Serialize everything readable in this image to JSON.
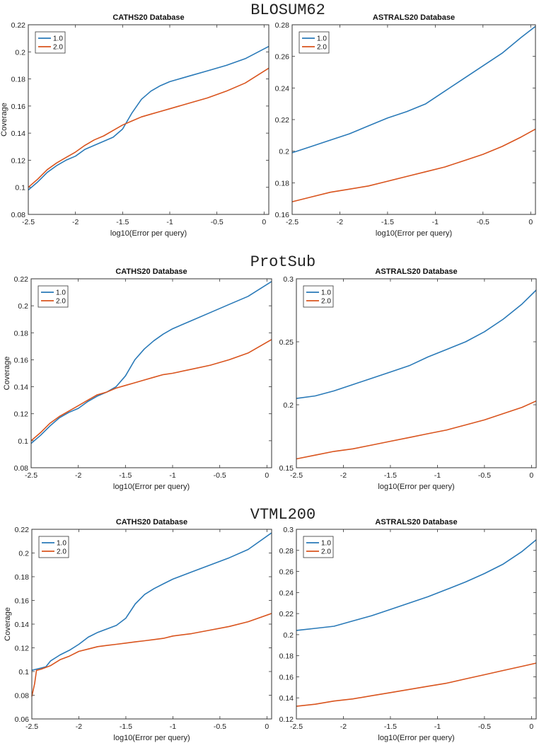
{
  "groups": [
    {
      "title": "BLOSUM62"
    },
    {
      "title": "ProtSub"
    },
    {
      "title": "VTML200"
    }
  ],
  "colors": {
    "series_1": "#2a7ab8",
    "series_2": "#d9541e"
  },
  "chart_data": [
    {
      "type": "line",
      "group": "BLOSUM62",
      "title": "CATHS20 Database",
      "xlabel": "log10(Error per query)",
      "ylabel": "Coverage",
      "xlim": [
        -2.5,
        0.05
      ],
      "ylim": [
        0.08,
        0.22
      ],
      "xticks": [
        -2.5,
        -2,
        -1.5,
        -1,
        -0.5,
        0
      ],
      "xtick_labels": [
        "-2.5",
        "-2",
        "-1.5",
        "-1",
        "-0.5",
        "0"
      ],
      "yticks": [
        0.08,
        0.1,
        0.12,
        0.14,
        0.16,
        0.18,
        0.2,
        0.22
      ],
      "ytick_labels": [
        "0.08",
        "0.1",
        "0.12",
        "0.14",
        "0.16",
        "0.18",
        "0.2",
        "0.22"
      ],
      "legend": [
        "1.0",
        "2.0"
      ],
      "legend_position": "top-left",
      "series": [
        {
          "name": "1.0",
          "x": [
            -2.5,
            -2.4,
            -2.3,
            -2.2,
            -2.1,
            -2.0,
            -1.9,
            -1.8,
            -1.7,
            -1.6,
            -1.5,
            -1.4,
            -1.3,
            -1.2,
            -1.1,
            -1.0,
            -0.8,
            -0.6,
            -0.4,
            -0.2,
            0.05
          ],
          "y": [
            0.098,
            0.104,
            0.111,
            0.116,
            0.12,
            0.123,
            0.128,
            0.131,
            0.134,
            0.137,
            0.143,
            0.155,
            0.165,
            0.171,
            0.175,
            0.178,
            0.182,
            0.186,
            0.19,
            0.195,
            0.204
          ]
        },
        {
          "name": "2.0",
          "x": [
            -2.5,
            -2.4,
            -2.3,
            -2.2,
            -2.1,
            -2.0,
            -1.9,
            -1.8,
            -1.7,
            -1.6,
            -1.5,
            -1.4,
            -1.3,
            -1.2,
            -1.1,
            -1.0,
            -0.8,
            -0.6,
            -0.4,
            -0.2,
            0.05
          ],
          "y": [
            0.1,
            0.106,
            0.113,
            0.118,
            0.122,
            0.126,
            0.131,
            0.135,
            0.138,
            0.142,
            0.146,
            0.149,
            0.152,
            0.154,
            0.156,
            0.158,
            0.162,
            0.166,
            0.171,
            0.177,
            0.188
          ]
        }
      ]
    },
    {
      "type": "line",
      "group": "BLOSUM62",
      "title": "ASTRALS20 Database",
      "xlabel": "log10(Error per query)",
      "ylabel": "",
      "xlim": [
        -2.5,
        0.05
      ],
      "ylim": [
        0.16,
        0.28
      ],
      "xticks": [
        -2.5,
        -2,
        -1.5,
        -1,
        -0.5,
        0
      ],
      "xtick_labels": [
        "-2.5",
        "-2",
        "-1.5",
        "-1",
        "-0.5",
        "0"
      ],
      "yticks": [
        0.16,
        0.18,
        0.2,
        0.22,
        0.24,
        0.26,
        0.28
      ],
      "ytick_labels": [
        "0.16",
        "0.18",
        "0.2",
        "0.22",
        "0.24",
        "0.26",
        "0.28"
      ],
      "legend": [
        "1.0",
        "2.0"
      ],
      "legend_position": "top-left",
      "series": [
        {
          "name": "1.0",
          "x": [
            -2.5,
            -2.3,
            -2.1,
            -1.9,
            -1.7,
            -1.5,
            -1.3,
            -1.1,
            -0.9,
            -0.7,
            -0.5,
            -0.3,
            -0.1,
            0.05
          ],
          "y": [
            0.199,
            0.203,
            0.207,
            0.211,
            0.216,
            0.221,
            0.225,
            0.23,
            0.238,
            0.246,
            0.254,
            0.262,
            0.272,
            0.279
          ]
        },
        {
          "name": "2.0",
          "x": [
            -2.5,
            -2.3,
            -2.1,
            -1.9,
            -1.7,
            -1.5,
            -1.3,
            -1.1,
            -0.9,
            -0.7,
            -0.5,
            -0.3,
            -0.1,
            0.05
          ],
          "y": [
            0.168,
            0.171,
            0.174,
            0.176,
            0.178,
            0.181,
            0.184,
            0.187,
            0.19,
            0.194,
            0.198,
            0.203,
            0.209,
            0.214
          ]
        }
      ]
    },
    {
      "type": "line",
      "group": "ProtSub",
      "title": "CATHS20 Database",
      "xlabel": "log10(Error per query)",
      "ylabel": "Coverage",
      "xlim": [
        -2.5,
        0.05
      ],
      "ylim": [
        0.08,
        0.22
      ],
      "xticks": [
        -2.5,
        -2,
        -1.5,
        -1,
        -0.5,
        0
      ],
      "xtick_labels": [
        "-2.5",
        "-2",
        "-1.5",
        "-1",
        "-0.5",
        "0"
      ],
      "yticks": [
        0.08,
        0.1,
        0.12,
        0.14,
        0.16,
        0.18,
        0.2,
        0.22
      ],
      "ytick_labels": [
        "0.08",
        "0.1",
        "0.12",
        "0.14",
        "0.16",
        "0.18",
        "0.2",
        "0.22"
      ],
      "legend": [
        "1.0",
        "2.0"
      ],
      "legend_position": "top-left",
      "series": [
        {
          "name": "1.0",
          "x": [
            -2.5,
            -2.4,
            -2.3,
            -2.2,
            -2.1,
            -2.0,
            -1.9,
            -1.8,
            -1.7,
            -1.6,
            -1.5,
            -1.4,
            -1.3,
            -1.2,
            -1.1,
            -1.0,
            -0.8,
            -0.6,
            -0.4,
            -0.2,
            0.05
          ],
          "y": [
            0.098,
            0.104,
            0.111,
            0.117,
            0.121,
            0.124,
            0.129,
            0.133,
            0.136,
            0.14,
            0.148,
            0.16,
            0.168,
            0.174,
            0.179,
            0.183,
            0.189,
            0.195,
            0.201,
            0.207,
            0.218
          ]
        },
        {
          "name": "2.0",
          "x": [
            -2.5,
            -2.4,
            -2.3,
            -2.2,
            -2.1,
            -2.0,
            -1.9,
            -1.8,
            -1.7,
            -1.6,
            -1.5,
            -1.4,
            -1.3,
            -1.2,
            -1.1,
            -1.0,
            -0.8,
            -0.6,
            -0.4,
            -0.2,
            0.05
          ],
          "y": [
            0.1,
            0.106,
            0.113,
            0.118,
            0.122,
            0.126,
            0.13,
            0.134,
            0.136,
            0.139,
            0.141,
            0.143,
            0.145,
            0.147,
            0.149,
            0.15,
            0.153,
            0.156,
            0.16,
            0.165,
            0.175
          ]
        }
      ]
    },
    {
      "type": "line",
      "group": "ProtSub",
      "title": "ASTRALS20 Database",
      "xlabel": "log10(Error per query)",
      "ylabel": "",
      "xlim": [
        -2.5,
        0.05
      ],
      "ylim": [
        0.15,
        0.3
      ],
      "xticks": [
        -2.5,
        -2,
        -1.5,
        -1,
        -0.5,
        0
      ],
      "xtick_labels": [
        "-2.5",
        "-2",
        "-1.5",
        "-1",
        "-0.5",
        "0"
      ],
      "yticks": [
        0.15,
        0.2,
        0.25,
        0.3
      ],
      "ytick_labels": [
        "0.15",
        "0.2",
        "0.25",
        "0.3"
      ],
      "legend": [
        "1.0",
        "2.0"
      ],
      "legend_position": "top-left",
      "series": [
        {
          "name": "1.0",
          "x": [
            -2.5,
            -2.3,
            -2.1,
            -1.9,
            -1.7,
            -1.5,
            -1.3,
            -1.1,
            -0.9,
            -0.7,
            -0.5,
            -0.3,
            -0.1,
            0.05
          ],
          "y": [
            0.205,
            0.207,
            0.211,
            0.216,
            0.221,
            0.226,
            0.231,
            0.238,
            0.244,
            0.25,
            0.258,
            0.268,
            0.28,
            0.291
          ]
        },
        {
          "name": "2.0",
          "x": [
            -2.5,
            -2.3,
            -2.1,
            -1.9,
            -1.7,
            -1.5,
            -1.3,
            -1.1,
            -0.9,
            -0.7,
            -0.5,
            -0.3,
            -0.1,
            0.05
          ],
          "y": [
            0.157,
            0.16,
            0.163,
            0.165,
            0.168,
            0.171,
            0.174,
            0.177,
            0.18,
            0.184,
            0.188,
            0.193,
            0.198,
            0.203
          ]
        }
      ]
    },
    {
      "type": "line",
      "group": "VTML200",
      "title": "CATHS20 Database",
      "xlabel": "log10(Error per query)",
      "ylabel": "Coverage",
      "xlim": [
        -2.5,
        0.05
      ],
      "ylim": [
        0.06,
        0.22
      ],
      "xticks": [
        -2.5,
        -2,
        -1.5,
        -1,
        -0.5,
        0
      ],
      "xtick_labels": [
        "-2.5",
        "-2",
        "-1.5",
        "-1",
        "-0.5",
        "0"
      ],
      "yticks": [
        0.06,
        0.08,
        0.1,
        0.12,
        0.14,
        0.16,
        0.18,
        0.2,
        0.22
      ],
      "ytick_labels": [
        "0.06",
        "0.08",
        "0.1",
        "0.12",
        "0.14",
        "0.16",
        "0.18",
        "0.2",
        "0.22"
      ],
      "legend": [
        "1.0",
        "2.0"
      ],
      "legend_position": "top-left",
      "series": [
        {
          "name": "1.0",
          "x": [
            -2.5,
            -2.45,
            -2.4,
            -2.35,
            -2.3,
            -2.2,
            -2.1,
            -2.0,
            -1.9,
            -1.8,
            -1.7,
            -1.6,
            -1.5,
            -1.4,
            -1.3,
            -1.2,
            -1.1,
            -1.0,
            -0.8,
            -0.6,
            -0.4,
            -0.2,
            0.05
          ],
          "y": [
            0.101,
            0.102,
            0.103,
            0.104,
            0.109,
            0.114,
            0.118,
            0.123,
            0.129,
            0.133,
            0.136,
            0.139,
            0.145,
            0.157,
            0.165,
            0.17,
            0.174,
            0.178,
            0.184,
            0.19,
            0.196,
            0.203,
            0.217
          ]
        },
        {
          "name": "2.0",
          "x": [
            -2.5,
            -2.47,
            -2.45,
            -2.4,
            -2.3,
            -2.2,
            -2.1,
            -2.0,
            -1.9,
            -1.8,
            -1.7,
            -1.6,
            -1.5,
            -1.4,
            -1.3,
            -1.2,
            -1.1,
            -1.0,
            -0.8,
            -0.6,
            -0.4,
            -0.2,
            0.05
          ],
          "y": [
            0.079,
            0.09,
            0.101,
            0.102,
            0.105,
            0.11,
            0.113,
            0.117,
            0.119,
            0.121,
            0.122,
            0.123,
            0.124,
            0.125,
            0.126,
            0.127,
            0.128,
            0.13,
            0.132,
            0.135,
            0.138,
            0.142,
            0.149
          ]
        }
      ]
    },
    {
      "type": "line",
      "group": "VTML200",
      "title": "ASTRALS20 Database",
      "xlabel": "log10(Error per query)",
      "ylabel": "",
      "xlim": [
        -2.5,
        0.05
      ],
      "ylim": [
        0.12,
        0.3
      ],
      "xticks": [
        -2.5,
        -2,
        -1.5,
        -1,
        -0.5,
        0
      ],
      "xtick_labels": [
        "-2.5",
        "-2",
        "-1.5",
        "-1",
        "-0.5",
        "0"
      ],
      "yticks": [
        0.12,
        0.14,
        0.16,
        0.18,
        0.2,
        0.22,
        0.24,
        0.26,
        0.28,
        0.3
      ],
      "ytick_labels": [
        "0.12",
        "0.14",
        "0.16",
        "0.18",
        "0.2",
        "0.22",
        "0.24",
        "0.26",
        "0.28",
        "0.3"
      ],
      "legend": [
        "1.0",
        "2.0"
      ],
      "legend_position": "top-left",
      "series": [
        {
          "name": "1.0",
          "x": [
            -2.5,
            -2.3,
            -2.1,
            -1.9,
            -1.7,
            -1.5,
            -1.3,
            -1.1,
            -0.9,
            -0.7,
            -0.5,
            -0.3,
            -0.1,
            0.05
          ],
          "y": [
            0.204,
            0.206,
            0.208,
            0.213,
            0.218,
            0.224,
            0.23,
            0.236,
            0.243,
            0.25,
            0.258,
            0.267,
            0.279,
            0.29
          ]
        },
        {
          "name": "2.0",
          "x": [
            -2.5,
            -2.3,
            -2.1,
            -1.9,
            -1.7,
            -1.5,
            -1.3,
            -1.1,
            -0.9,
            -0.7,
            -0.5,
            -0.3,
            -0.1,
            0.05
          ],
          "y": [
            0.132,
            0.134,
            0.137,
            0.139,
            0.142,
            0.145,
            0.148,
            0.151,
            0.154,
            0.158,
            0.162,
            0.166,
            0.17,
            0.173
          ]
        }
      ]
    }
  ]
}
